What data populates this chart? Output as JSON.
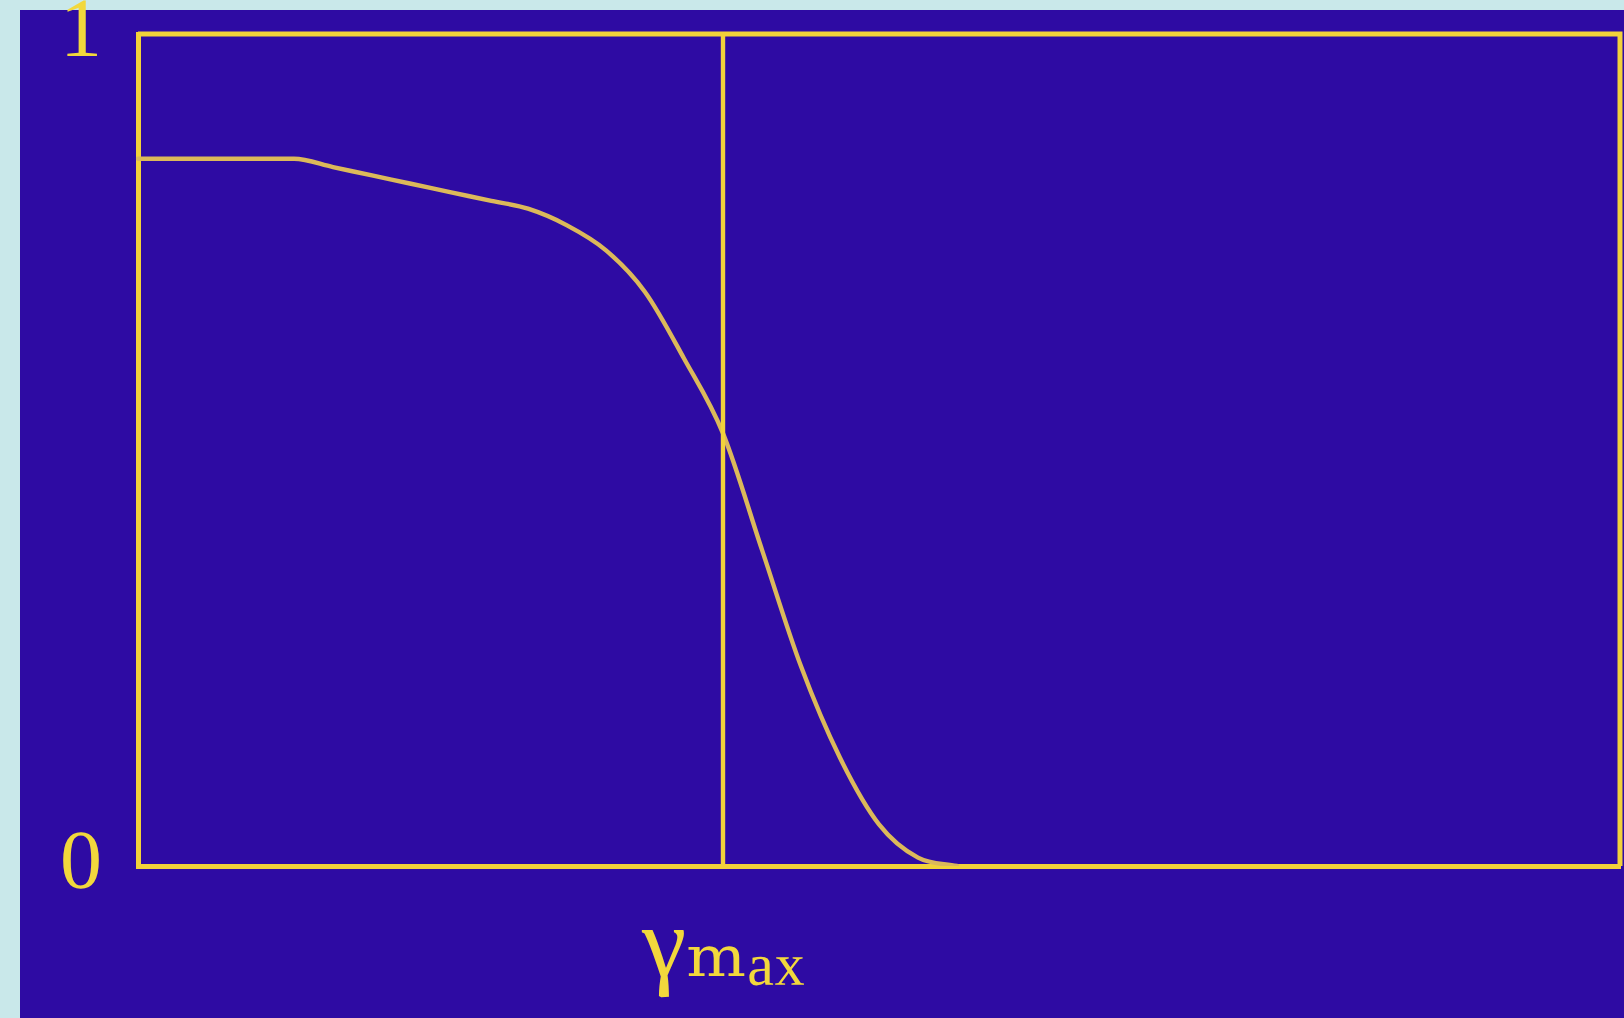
{
  "chart_data": {
    "type": "line",
    "categories": [
      null,
      null,
      null,
      null,
      null,
      null,
      null,
      null,
      null,
      null,
      null,
      null,
      null,
      null,
      null,
      "γₘₐₓ",
      null,
      null,
      null,
      null,
      null,
      null,
      null,
      null,
      null,
      null,
      null,
      null,
      null,
      null,
      null,
      null,
      null,
      null,
      null,
      null,
      null,
      null,
      null
    ],
    "series": [
      {
        "color": "#dcb95a",
        "values": [
          0.85,
          0.85,
          0.85,
          0.85,
          0.85,
          0.84,
          0.83,
          0.82,
          0.81,
          0.8,
          0.79,
          0.77,
          0.74,
          0.69,
          0.61,
          0.52,
          0.38,
          0.24,
          0.13,
          0.05,
          0.01,
          0,
          null,
          null,
          null,
          null,
          null,
          null,
          null,
          null,
          null,
          null,
          null,
          null,
          null,
          null,
          null,
          null,
          null
        ]
      }
    ],
    "ylim": [
      0,
      1
    ],
    "yticks": [
      0,
      1
    ],
    "ref_lines": [
      {
        "axis": "x",
        "value": "γₘₐₓ",
        "color": "#f2d23a"
      }
    ],
    "marker": "none"
  }
}
